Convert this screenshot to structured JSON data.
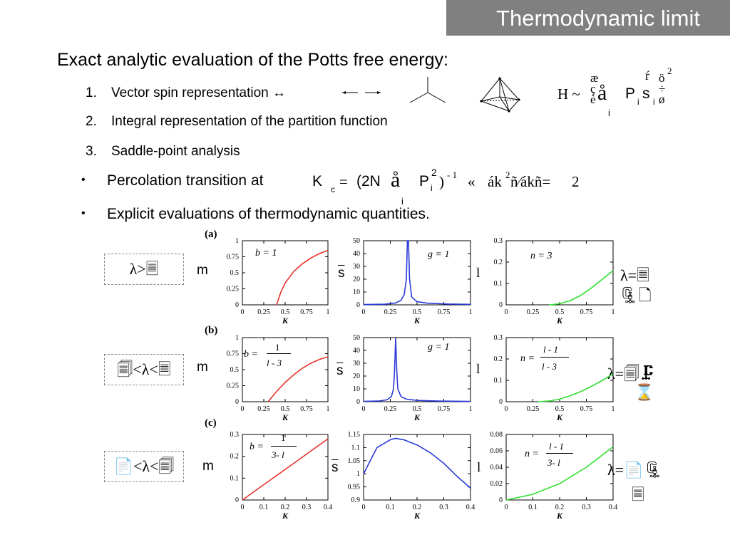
{
  "slide": {
    "title": "Thermodynamic limit",
    "heading": "Exact analytic evaluation of the Potts free energy:",
    "numbered_items": [
      {
        "number": "1.",
        "text": "Vector spin representation ↔"
      },
      {
        "number": "2.",
        "text": "Integral representation of the partition function"
      },
      {
        "number": "3.",
        "text": "Saddle-point analysis"
      }
    ],
    "bullets": [
      {
        "symbol": "•",
        "text": "Percolation transition at"
      },
      {
        "symbol": "•",
        "text": "Explicit evaluations of thermodynamic quantities."
      }
    ],
    "formula_h": {
      "h": "H ~",
      "brackets_left": "æ\nç\nè",
      "sum": "å",
      "sum_index": "i",
      "p": "P",
      "p_index": "i",
      "s": "s",
      "s_index": "i",
      "brackets_right": "ö\n÷\nø",
      "exp_top": "ŕ",
      "exp_two": "2"
    },
    "formula_k": {
      "k": "K",
      "k_sub": "c",
      "eq": "=",
      "paren_open": "(2N",
      "sum": "å",
      "sum_index": "i",
      "p": "P",
      "p_sub": "i",
      "p_sup": "2",
      "paren_close": ")",
      "exp": "- 1",
      "approx": "«",
      "rest": "ák",
      "rest_sup": "2",
      "rest2": "ñ⁄ákñ=",
      "value": "2"
    },
    "rows": [
      {
        "label": "(a)",
        "box": "λ>🗏",
        "right": [
          "λ=🗏",
          "🗜🗋"
        ],
        "ylabels": [
          "m",
          "s",
          "l"
        ],
        "plot_annotations": [
          "b = 1",
          "g = 1",
          "n = 3"
        ]
      },
      {
        "label": "(b)",
        "box": "🗐<λ<🗏",
        "right": [
          "λ=🗐🗜",
          "⌛"
        ],
        "ylabels": [
          "m",
          "s",
          "l"
        ],
        "plot_annotations": [
          "b =",
          "1",
          "l - 3",
          "g = 1",
          "n =",
          "l - 1",
          "l - 3"
        ]
      },
      {
        "label": "(c)",
        "box": "📄<λ<🗐",
        "right": [
          "λ=📄🗜",
          "🗏"
        ],
        "ylabels": [
          "m",
          "s",
          "l"
        ],
        "plot_annotations": [
          "b =",
          "1",
          "3- l",
          "n =",
          "l - 1",
          "3- l"
        ]
      }
    ],
    "axis_label": "K",
    "colors": {
      "title_bar": "#808080",
      "red": "#e8322b",
      "blue": "#2b3bd9",
      "green": "#2fe02f"
    }
  },
  "chart_data": [
    {
      "type": "line",
      "id": "a1",
      "xlim": [
        0,
        1
      ],
      "ylim": [
        0,
        1
      ],
      "xticks": [
        "0",
        "0.25",
        "0.5",
        "0.75",
        "1"
      ],
      "yticks": [
        "0",
        "0.25",
        "0.5",
        "0.75",
        "1"
      ],
      "xlabel": "K",
      "ylabel": "m",
      "series": [
        {
          "color": "#e8322b",
          "x": [
            0.4,
            0.45,
            0.5,
            0.6,
            0.7,
            0.8,
            0.9,
            1.0
          ],
          "y": [
            0,
            0.2,
            0.34,
            0.52,
            0.64,
            0.73,
            0.8,
            0.85
          ]
        }
      ]
    },
    {
      "type": "line",
      "id": "a2",
      "xlim": [
        0,
        1
      ],
      "ylim": [
        0,
        50
      ],
      "xticks": [
        "0",
        "0.25",
        "0.5",
        "0.75",
        "1"
      ],
      "yticks": [
        "0",
        "10",
        "20",
        "30",
        "40",
        "50"
      ],
      "xlabel": "K",
      "ylabel": "s",
      "series": [
        {
          "color": "#2b3bd9",
          "x": [
            0,
            0.2,
            0.3,
            0.35,
            0.38,
            0.4,
            0.41,
            0.42,
            0.43,
            0.45,
            0.5,
            0.6,
            0.8,
            1.0
          ],
          "y": [
            0.2,
            0.5,
            1.5,
            3.5,
            8,
            20,
            50,
            50,
            20,
            6,
            2.5,
            1.3,
            0.6,
            0.4
          ]
        }
      ]
    },
    {
      "type": "line",
      "id": "a3",
      "xlim": [
        0,
        1
      ],
      "ylim": [
        0,
        0.3
      ],
      "xticks": [
        "0",
        "0.25",
        "0.5",
        "0.75",
        "1"
      ],
      "yticks": [
        "0",
        "0.1",
        "0.2",
        "0.3"
      ],
      "xlabel": "K",
      "ylabel": "l",
      "series": [
        {
          "color": "#2fe02f",
          "x": [
            0.4,
            0.5,
            0.6,
            0.7,
            0.8,
            0.9,
            1.0
          ],
          "y": [
            0,
            0.005,
            0.02,
            0.045,
            0.08,
            0.12,
            0.16
          ]
        }
      ]
    },
    {
      "type": "line",
      "id": "b1",
      "xlim": [
        0,
        1
      ],
      "ylim": [
        0,
        1
      ],
      "xticks": [
        "0",
        "0.25",
        "0.5",
        "0.75",
        "1"
      ],
      "yticks": [
        "0",
        "0.25",
        "0.5",
        "0.75",
        "1"
      ],
      "xlabel": "K",
      "ylabel": "m",
      "series": [
        {
          "color": "#e8322b",
          "x": [
            0.3,
            0.35,
            0.4,
            0.5,
            0.6,
            0.7,
            0.8,
            0.9,
            1.0
          ],
          "y": [
            0,
            0.08,
            0.16,
            0.3,
            0.42,
            0.52,
            0.6,
            0.66,
            0.7
          ]
        }
      ]
    },
    {
      "type": "line",
      "id": "b2",
      "xlim": [
        0,
        1
      ],
      "ylim": [
        0,
        50
      ],
      "xticks": [
        "0",
        "0.25",
        "0.5",
        "0.75",
        "1"
      ],
      "yticks": [
        "0",
        "10",
        "20",
        "30",
        "40",
        "50"
      ],
      "xlabel": "K",
      "ylabel": "s",
      "series": [
        {
          "color": "#2b3bd9",
          "x": [
            0,
            0.15,
            0.22,
            0.26,
            0.28,
            0.29,
            0.3,
            0.31,
            0.32,
            0.35,
            0.4,
            0.5,
            0.7,
            1.0
          ],
          "y": [
            0.2,
            0.6,
            1.5,
            4,
            10,
            25,
            50,
            25,
            10,
            4,
            2,
            1,
            0.5,
            0.3
          ]
        }
      ]
    },
    {
      "type": "line",
      "id": "b3",
      "xlim": [
        0,
        1
      ],
      "ylim": [
        0,
        0.3
      ],
      "xticks": [
        "0",
        "0.25",
        "0.5",
        "0.75",
        "1"
      ],
      "yticks": [
        "0",
        "0.1",
        "0.2",
        "0.3"
      ],
      "xlabel": "K",
      "ylabel": "l",
      "series": [
        {
          "color": "#2fe02f",
          "x": [
            0.3,
            0.4,
            0.5,
            0.6,
            0.7,
            0.8,
            0.9,
            1.0
          ],
          "y": [
            0,
            0.003,
            0.012,
            0.028,
            0.048,
            0.072,
            0.1,
            0.13
          ]
        }
      ]
    },
    {
      "type": "line",
      "id": "c1",
      "xlim": [
        0,
        0.4
      ],
      "ylim": [
        0,
        0.3
      ],
      "xticks": [
        "0",
        "0.1",
        "0.2",
        "0.3",
        "0.4"
      ],
      "yticks": [
        "0",
        "0.1",
        "0.2",
        "0.3"
      ],
      "xlabel": "K",
      "ylabel": "m",
      "series": [
        {
          "color": "#e8322b",
          "x": [
            0,
            0.1,
            0.2,
            0.3,
            0.4
          ],
          "y": [
            0,
            0.07,
            0.14,
            0.21,
            0.28
          ]
        }
      ]
    },
    {
      "type": "line",
      "id": "c2",
      "xlim": [
        0,
        0.4
      ],
      "ylim": [
        0.9,
        1.15
      ],
      "xticks": [
        "0",
        "0.1",
        "0.2",
        "0.3",
        "0.4"
      ],
      "yticks": [
        "0.9",
        "0.95",
        "1",
        "1.05",
        "1.1",
        "1.15"
      ],
      "xlabel": "K",
      "ylabel": "s",
      "series": [
        {
          "color": "#2b3bd9",
          "x": [
            0,
            0.05,
            0.1,
            0.12,
            0.15,
            0.2,
            0.25,
            0.3,
            0.35,
            0.4
          ],
          "y": [
            1.0,
            1.1,
            1.13,
            1.135,
            1.13,
            1.11,
            1.08,
            1.04,
            0.99,
            0.945
          ]
        }
      ]
    },
    {
      "type": "line",
      "id": "c3",
      "xlim": [
        0,
        0.4
      ],
      "ylim": [
        0,
        0.08
      ],
      "xticks": [
        "0",
        "0.1",
        "0.2",
        "0.3",
        "0.4"
      ],
      "yticks": [
        "0",
        "0.02",
        "0.04",
        "0.06",
        "0.08"
      ],
      "xlabel": "K",
      "ylabel": "l",
      "series": [
        {
          "color": "#2fe02f",
          "x": [
            0,
            0.1,
            0.2,
            0.3,
            0.4
          ],
          "y": [
            0,
            0.007,
            0.02,
            0.04,
            0.065
          ]
        }
      ]
    }
  ]
}
